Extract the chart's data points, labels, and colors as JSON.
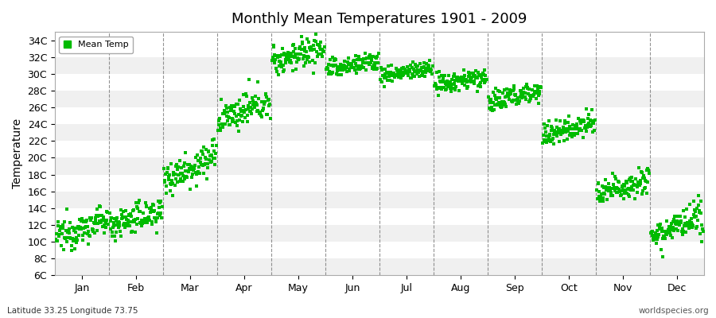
{
  "title": "Monthly Mean Temperatures 1901 - 2009",
  "ylabel": "Temperature",
  "xlabel": "",
  "bg_color": "#ffffff",
  "plot_bg_color": "#ffffff",
  "dot_color": "#00bb00",
  "dot_size": 5,
  "legend_label": "Mean Temp",
  "bottom_left_text": "Latitude 33.25 Longitude 73.75",
  "bottom_right_text": "worldspecies.org",
  "ytick_labels": [
    "6C",
    "8C",
    "10C",
    "12C",
    "14C",
    "16C",
    "18C",
    "20C",
    "22C",
    "24C",
    "26C",
    "28C",
    "30C",
    "32C",
    "34C"
  ],
  "ytick_values": [
    6,
    8,
    10,
    12,
    14,
    16,
    18,
    20,
    22,
    24,
    26,
    28,
    30,
    32,
    34
  ],
  "ylim": [
    6,
    35
  ],
  "months": [
    "Jan",
    "Feb",
    "Mar",
    "Apr",
    "May",
    "Jun",
    "Jul",
    "Aug",
    "Sep",
    "Oct",
    "Nov",
    "Dec"
  ],
  "n_years": 109,
  "month_means": [
    10.5,
    12.0,
    17.5,
    24.5,
    31.5,
    30.5,
    29.8,
    28.6,
    26.5,
    22.5,
    15.5,
    10.8
  ],
  "month_trends": [
    0.02,
    0.015,
    0.025,
    0.02,
    0.015,
    0.01,
    0.008,
    0.01,
    0.015,
    0.018,
    0.02,
    0.018
  ],
  "month_stds": [
    0.9,
    0.9,
    1.0,
    0.9,
    0.9,
    0.6,
    0.5,
    0.6,
    0.7,
    0.7,
    0.8,
    0.9
  ],
  "band_colors": [
    "#f0f0f0",
    "#ffffff"
  ],
  "dashed_line_color": "#666666",
  "grid_line_color": "#dddddd"
}
